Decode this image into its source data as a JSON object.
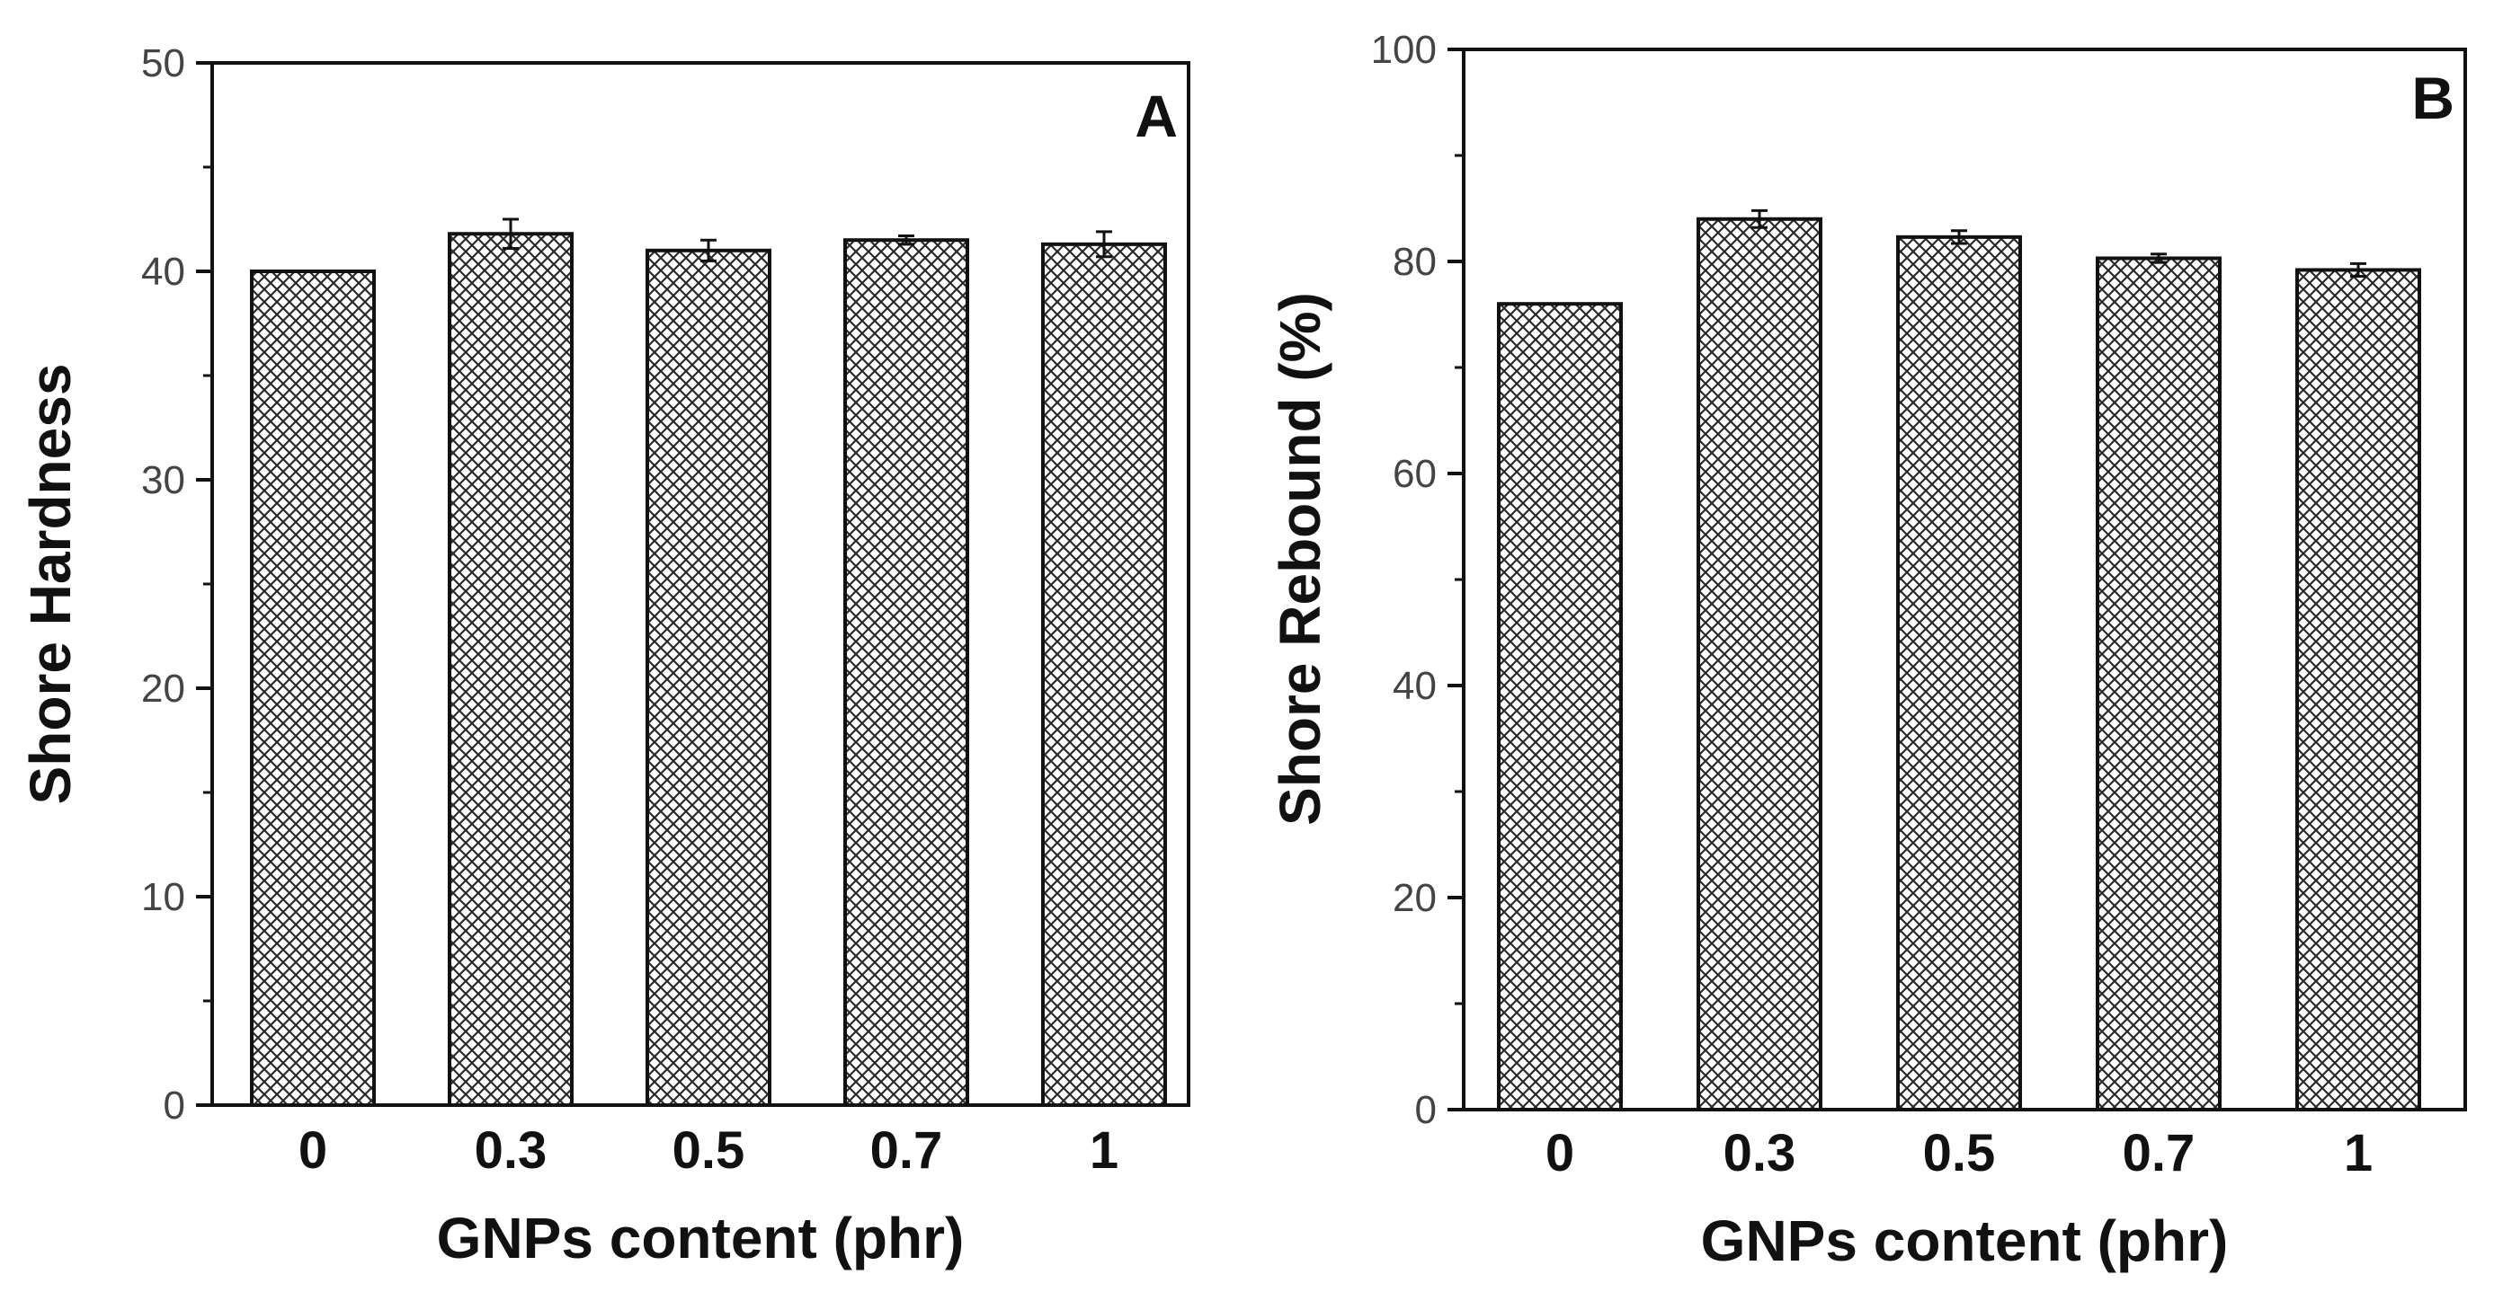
{
  "chart_data": [
    {
      "type": "bar",
      "panel_label": "A",
      "categories": [
        "0",
        "0.3",
        "0.5",
        "0.7",
        "1"
      ],
      "values": [
        40.0,
        41.8,
        41.0,
        41.5,
        41.3
      ],
      "errors": [
        0.0,
        0.7,
        0.5,
        0.2,
        0.6
      ],
      "ylim": [
        0,
        50
      ],
      "yticks": [
        "0",
        "10",
        "20",
        "30",
        "40",
        "50"
      ],
      "xlabel": "GNPs content (phr)",
      "ylabel": "Shore Hardness",
      "bar_pattern": "crosshatch"
    },
    {
      "type": "bar",
      "panel_label": "B",
      "categories": [
        "0",
        "0.3",
        "0.5",
        "0.7",
        "1"
      ],
      "values": [
        76.0,
        84.0,
        82.3,
        80.3,
        79.2
      ],
      "errors": [
        0.0,
        0.8,
        0.6,
        0.4,
        0.6
      ],
      "ylim": [
        0,
        100
      ],
      "yticks": [
        "0",
        "20",
        "40",
        "60",
        "80",
        "100"
      ],
      "xlabel": "GNPs content (phr)",
      "ylabel": "Shore Rebound (%)",
      "bar_pattern": "crosshatch"
    }
  ]
}
